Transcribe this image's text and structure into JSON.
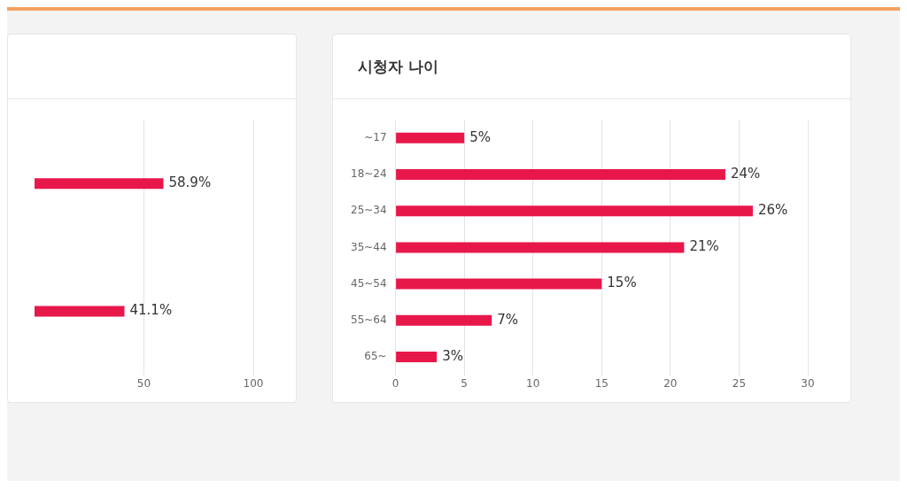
{
  "chart_data": [
    {
      "type": "bar",
      "orientation": "horizontal",
      "categories": [
        null,
        null
      ],
      "values": [
        58.9,
        41.1
      ],
      "value_labels": [
        "58.9%",
        "41.1%"
      ],
      "color": "#e8174a",
      "xlim": [
        0,
        100
      ],
      "xticks": [
        50,
        100
      ],
      "grid": "x",
      "legend": false
    },
    {
      "type": "bar",
      "orientation": "horizontal",
      "title": "시청자 나이",
      "categories": [
        "~17",
        "18~24",
        "25~34",
        "35~44",
        "45~54",
        "55~64",
        "65~"
      ],
      "values": [
        5,
        24,
        26,
        21,
        15,
        7,
        3
      ],
      "value_labels": [
        "5%",
        "24%",
        "26%",
        "21%",
        "15%",
        "7%",
        "3%"
      ],
      "color": "#e8174a",
      "xlim": [
        0,
        30
      ],
      "xticks": [
        0,
        5,
        10,
        15,
        20,
        25,
        30
      ],
      "grid": "x",
      "legend": false
    }
  ]
}
